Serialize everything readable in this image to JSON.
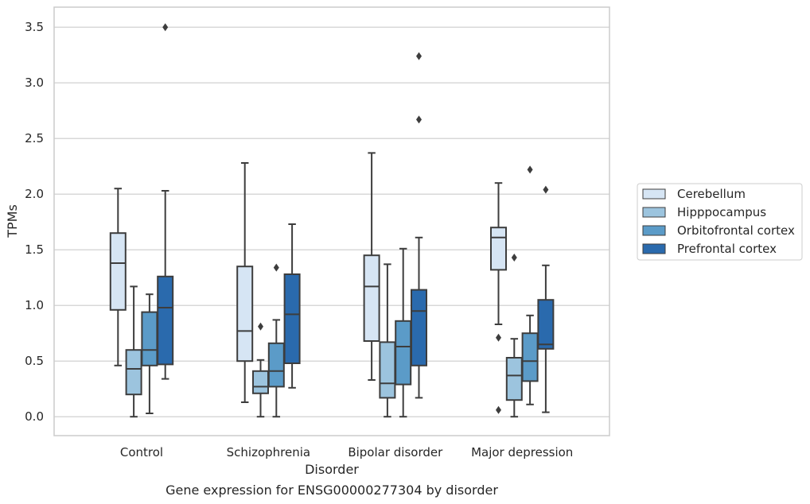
{
  "caption": "Gene expression for ENSG00000277304 by disorder",
  "chart_data": {
    "type": "boxplot",
    "xlabel": "Disorder",
    "ylabel": "TPMs",
    "ylim": [
      -0.17,
      3.68
    ],
    "yticks": [
      "0.0",
      "0.5",
      "1.0",
      "1.5",
      "2.0",
      "2.5",
      "3.0",
      "3.5"
    ],
    "categories": [
      "Control",
      "Schizophrenia",
      "Bipolar disorder",
      "Major depression"
    ],
    "grid": "horizontal",
    "legend_position": "right",
    "series": [
      {
        "name": "Cerebellum",
        "color": "#d6e5f4",
        "boxes": [
          {
            "whislo": 0.46,
            "q1": 0.96,
            "med": 1.38,
            "q3": 1.65,
            "whishi": 2.05,
            "fliers": []
          },
          {
            "whislo": 0.13,
            "q1": 0.5,
            "med": 0.77,
            "q3": 1.35,
            "whishi": 2.28,
            "fliers": []
          },
          {
            "whislo": 0.33,
            "q1": 0.68,
            "med": 1.17,
            "q3": 1.45,
            "whishi": 2.37,
            "fliers": []
          },
          {
            "whislo": 0.83,
            "q1": 1.32,
            "med": 1.61,
            "q3": 1.7,
            "whishi": 2.1,
            "fliers": [
              0.71,
              0.06
            ]
          }
        ]
      },
      {
        "name": "Hipppocampus",
        "color": "#9cc4de",
        "boxes": [
          {
            "whislo": 0.0,
            "q1": 0.2,
            "med": 0.43,
            "q3": 0.6,
            "whishi": 1.17,
            "fliers": []
          },
          {
            "whislo": 0.0,
            "q1": 0.21,
            "med": 0.27,
            "q3": 0.41,
            "whishi": 0.51,
            "fliers": [
              0.81
            ]
          },
          {
            "whislo": 0.0,
            "q1": 0.17,
            "med": 0.3,
            "q3": 0.67,
            "whishi": 1.37,
            "fliers": []
          },
          {
            "whislo": 0.0,
            "q1": 0.15,
            "med": 0.37,
            "q3": 0.53,
            "whishi": 0.7,
            "fliers": [
              1.43
            ]
          }
        ]
      },
      {
        "name": "Orbitofrontal cortex",
        "color": "#5b9bc8",
        "boxes": [
          {
            "whislo": 0.03,
            "q1": 0.46,
            "med": 0.6,
            "q3": 0.94,
            "whishi": 1.1,
            "fliers": []
          },
          {
            "whislo": 0.0,
            "q1": 0.27,
            "med": 0.41,
            "q3": 0.66,
            "whishi": 0.87,
            "fliers": [
              1.34
            ]
          },
          {
            "whislo": 0.0,
            "q1": 0.29,
            "med": 0.63,
            "q3": 0.86,
            "whishi": 1.51,
            "fliers": []
          },
          {
            "whislo": 0.11,
            "q1": 0.32,
            "med": 0.5,
            "q3": 0.75,
            "whishi": 0.91,
            "fliers": [
              2.22
            ]
          }
        ]
      },
      {
        "name": "Prefrontal cortex",
        "color": "#2a6aad",
        "boxes": [
          {
            "whislo": 0.34,
            "q1": 0.47,
            "med": 0.98,
            "q3": 1.26,
            "whishi": 2.03,
            "fliers": [
              3.5
            ]
          },
          {
            "whislo": 0.26,
            "q1": 0.48,
            "med": 0.92,
            "q3": 1.28,
            "whishi": 1.73,
            "fliers": []
          },
          {
            "whislo": 0.17,
            "q1": 0.46,
            "med": 0.95,
            "q3": 1.14,
            "whishi": 1.61,
            "fliers": [
              2.67,
              3.24
            ]
          },
          {
            "whislo": 0.04,
            "q1": 0.61,
            "med": 0.65,
            "q3": 1.05,
            "whishi": 1.36,
            "fliers": [
              2.04
            ]
          }
        ]
      }
    ]
  }
}
